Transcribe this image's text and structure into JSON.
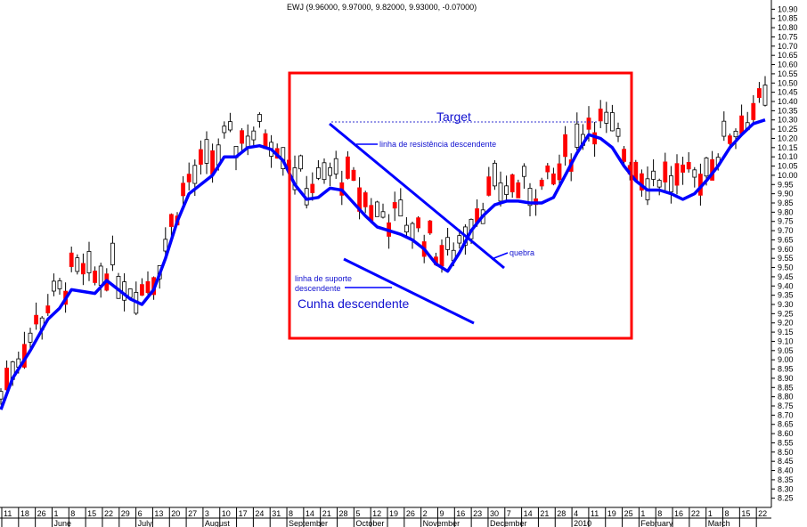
{
  "chart_data": {
    "type": "candlestick",
    "title": "EWJ (9.96000, 9.97000, 9.82000, 9.93000, -0.07000)",
    "ylim": [
      8.2,
      10.95
    ],
    "y_ticks": [
      8.25,
      8.3,
      8.35,
      8.4,
      8.45,
      8.5,
      8.55,
      8.6,
      8.65,
      8.7,
      8.75,
      8.8,
      8.85,
      8.9,
      8.95,
      9.0,
      9.05,
      9.1,
      9.15,
      9.2,
      9.25,
      9.3,
      9.35,
      9.4,
      9.45,
      9.5,
      9.55,
      9.6,
      9.65,
      9.7,
      9.75,
      9.8,
      9.85,
      9.9,
      9.95,
      10.0,
      10.05,
      10.1,
      10.15,
      10.2,
      10.25,
      10.3,
      10.35,
      10.4,
      10.45,
      10.5,
      10.55,
      10.6,
      10.65,
      10.7,
      10.75,
      10.8,
      10.85,
      10.9
    ],
    "y_tick_labels": [
      "8.25",
      "8.30",
      "8.35",
      "8.40",
      "8.45",
      "8.50",
      "8.55",
      "8.60",
      "8.65",
      "8.70",
      "8.75",
      "8.80",
      "8.85",
      "8.90",
      "8.95",
      "9.00",
      "9.05",
      "9.10",
      "9.15",
      "9.20",
      "9.25",
      "9.30",
      "9.35",
      "9.40",
      "9.45",
      "9.50",
      "9.55",
      "9.60",
      "9.65",
      "9.70",
      "9.75",
      "9.80",
      "9.85",
      "9.90",
      "9.95",
      "10.00",
      "10.05",
      "10.10",
      "10.15",
      "10.20",
      "10.25",
      "10.30",
      "10.35",
      "10.40",
      "10.45",
      "10.50",
      "10.55",
      "10.60",
      "10.65",
      "10.70",
      "10.75",
      "10.80",
      "10.85",
      "10.90"
    ],
    "x_day_labels": [
      "11",
      "18",
      "26",
      "1",
      "8",
      "15",
      "22",
      "29",
      "6",
      "13",
      "20",
      "27",
      "3",
      "10",
      "17",
      "24",
      "31",
      "8",
      "14",
      "21",
      "28",
      "5",
      "12",
      "19",
      "26",
      "2",
      "9",
      "16",
      "23",
      "30",
      "7",
      "14",
      "21",
      "28",
      "4",
      "11",
      "19",
      "25",
      "1",
      "8",
      "16",
      "22",
      "1",
      "8",
      "15",
      "22"
    ],
    "x_month_labels": [
      "June",
      "July",
      "August",
      "September",
      "October",
      "November",
      "December",
      "2010",
      "February",
      "March"
    ],
    "x_month_index": [
      3,
      8,
      12,
      17,
      21,
      25,
      29,
      34,
      38,
      42
    ],
    "trend_path": [
      [
        0,
        8.73
      ],
      [
        2,
        8.9
      ],
      [
        5,
        9.05
      ],
      [
        8,
        9.22
      ],
      [
        10,
        9.28
      ],
      [
        12,
        9.38
      ],
      [
        14,
        9.37
      ],
      [
        16,
        9.36
      ],
      [
        18,
        9.43
      ],
      [
        20,
        9.38
      ],
      [
        22,
        9.33
      ],
      [
        24,
        9.3
      ],
      [
        26,
        9.38
      ],
      [
        28,
        9.55
      ],
      [
        30,
        9.75
      ],
      [
        32,
        9.9
      ],
      [
        34,
        9.95
      ],
      [
        36,
        10.0
      ],
      [
        38,
        10.1
      ],
      [
        40,
        10.1
      ],
      [
        42,
        10.15
      ],
      [
        44,
        10.16
      ],
      [
        46,
        10.14
      ],
      [
        48,
        10.08
      ],
      [
        50,
        9.95
      ],
      [
        52,
        9.87
      ],
      [
        54,
        9.88
      ],
      [
        56,
        9.93
      ],
      [
        58,
        9.92
      ],
      [
        60,
        9.85
      ],
      [
        62,
        9.78
      ],
      [
        64,
        9.72
      ],
      [
        66,
        9.7
      ],
      [
        68,
        9.68
      ],
      [
        70,
        9.65
      ],
      [
        72,
        9.6
      ],
      [
        74,
        9.52
      ],
      [
        76,
        9.48
      ],
      [
        78,
        9.58
      ],
      [
        80,
        9.7
      ],
      [
        82,
        9.78
      ],
      [
        84,
        9.84
      ],
      [
        86,
        9.86
      ],
      [
        88,
        9.86
      ],
      [
        90,
        9.85
      ],
      [
        92,
        9.85
      ],
      [
        94,
        9.88
      ],
      [
        96,
        10.0
      ],
      [
        98,
        10.12
      ],
      [
        100,
        10.22
      ],
      [
        102,
        10.2
      ],
      [
        104,
        10.15
      ],
      [
        106,
        10.05
      ],
      [
        108,
        9.97
      ],
      [
        110,
        9.92
      ],
      [
        112,
        9.92
      ],
      [
        114,
        9.9
      ],
      [
        116,
        9.87
      ],
      [
        118,
        9.9
      ],
      [
        120,
        9.97
      ],
      [
        122,
        10.05
      ],
      [
        124,
        10.15
      ],
      [
        126,
        10.22
      ],
      [
        128,
        10.28
      ],
      [
        130,
        10.3
      ]
    ],
    "annotations": {
      "title_label": "Target",
      "resistance_label": "linha de resistência descendente",
      "support_label_1": "linha de suporte",
      "support_label_2": "descendente",
      "pattern_label": "Cunha descendente",
      "break_label": "quebra"
    },
    "colors": {
      "trend": "#0000ff",
      "down_candle": "#ff0000",
      "up_candle": "#ffffff",
      "annotation_box": "#ff0000",
      "annotation_text": "#1010d0"
    }
  }
}
